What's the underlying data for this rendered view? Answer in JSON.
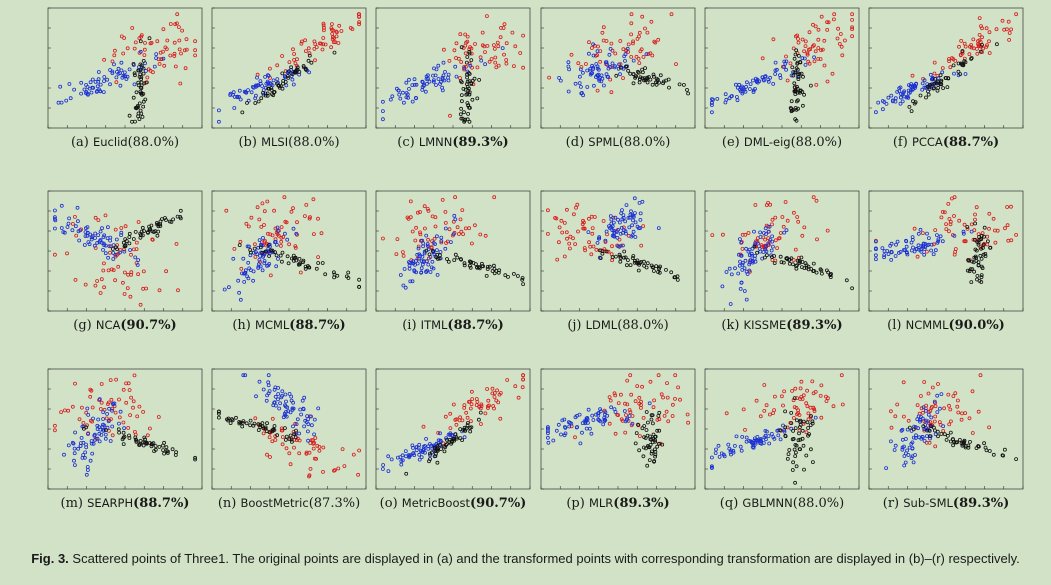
{
  "figure": {
    "label": "Fig. 3.",
    "caption": "Scattered points of Three1. The original points are displayed in (a) and the transformed points with corresponding transformation are displayed in (b)–(r) respectively."
  },
  "colors": {
    "class_1": "#d81b1b",
    "class_2": "#1a2fd4",
    "class_3": "#111111"
  },
  "chart_data": [
    {
      "letter": "(a)",
      "method": "Euclid",
      "score": "(88.0%)",
      "bold": false,
      "type": "scatter",
      "shape": "A"
    },
    {
      "letter": "(b)",
      "method": "MLSI",
      "score": "(88.0%)",
      "bold": false,
      "type": "scatter",
      "shape": "B"
    },
    {
      "letter": "(c)",
      "method": "LMNN",
      "score": "(89.3%)",
      "bold": true,
      "type": "scatter",
      "shape": "A"
    },
    {
      "letter": "(d)",
      "method": "SPML",
      "score": "(88.0%)",
      "bold": false,
      "type": "scatter",
      "shape": "D"
    },
    {
      "letter": "(e)",
      "method": "DML-eig",
      "score": "(88.0%)",
      "bold": false,
      "type": "scatter",
      "shape": "A"
    },
    {
      "letter": "(f)",
      "method": "PCCA",
      "score": "(88.7%)",
      "bold": true,
      "type": "scatter",
      "shape": "B"
    },
    {
      "letter": "(g)",
      "method": "NCA",
      "score": "(90.7%)",
      "bold": true,
      "type": "scatter",
      "shape": "G"
    },
    {
      "letter": "(h)",
      "method": "MCML",
      "score": "(88.7%)",
      "bold": true,
      "type": "scatter",
      "shape": "H"
    },
    {
      "letter": "(i)",
      "method": "ITML",
      "score": "(88.7%)",
      "bold": true,
      "type": "scatter",
      "shape": "H"
    },
    {
      "letter": "(j)",
      "method": "LDML",
      "score": "(88.0%)",
      "bold": false,
      "type": "scatter",
      "shape": "J"
    },
    {
      "letter": "(k)",
      "method": "KISSME",
      "score": "(89.3%)",
      "bold": true,
      "type": "scatter",
      "shape": "H"
    },
    {
      "letter": "(l)",
      "method": "NCMML",
      "score": "(90.0%)",
      "bold": true,
      "type": "scatter",
      "shape": "L"
    },
    {
      "letter": "(m)",
      "method": "SEARPH",
      "score": "(88.7%)",
      "bold": true,
      "type": "scatter",
      "shape": "H"
    },
    {
      "letter": "(n)",
      "method": "BoostMetric",
      "score": "(87.3%)",
      "bold": false,
      "type": "scatter",
      "shape": "N"
    },
    {
      "letter": "(o)",
      "method": "MetricBoost",
      "score": "(90.7%)",
      "bold": true,
      "type": "scatter",
      "shape": "B"
    },
    {
      "letter": "(p)",
      "method": "MLR",
      "score": "(89.3%)",
      "bold": true,
      "type": "scatter",
      "shape": "L"
    },
    {
      "letter": "(q)",
      "method": "GBLMNN",
      "score": "(88.0%)",
      "bold": false,
      "type": "scatter",
      "shape": "Q"
    },
    {
      "letter": "(r)",
      "method": "Sub-SML",
      "score": "(89.3%)",
      "bold": true,
      "type": "scatter",
      "shape": "H"
    }
  ]
}
